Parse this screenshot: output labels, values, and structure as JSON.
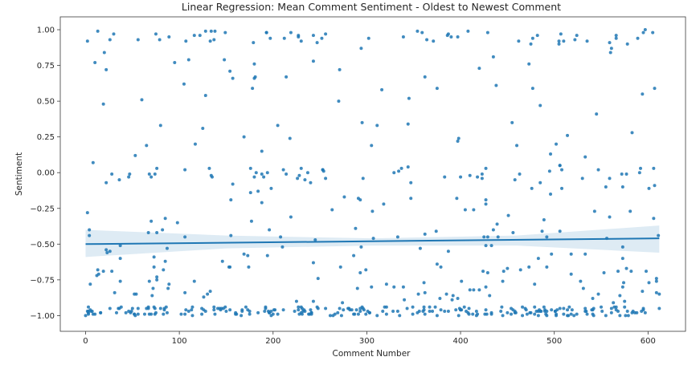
{
  "chart_data": {
    "type": "scatter",
    "title": "Linear Regression:  Mean Comment Sentiment - Oldest to Newest Comment",
    "xlabel": "Comment Number",
    "ylabel": "Sentiment",
    "xlim": [
      -27,
      640
    ],
    "ylim": [
      -1.11,
      1.09
    ],
    "x_ticks": [
      0,
      100,
      200,
      300,
      400,
      500,
      600
    ],
    "y_ticks": [
      -1.0,
      -0.75,
      -0.5,
      -0.25,
      0.0,
      0.25,
      0.5,
      0.75,
      1.0
    ],
    "x_tick_labels": [
      "0",
      "100",
      "200",
      "300",
      "400",
      "500",
      "600"
    ],
    "y_tick_labels": [
      "−1.00",
      "−0.75",
      "−0.50",
      "−0.25",
      "0.00",
      "0.25",
      "0.50",
      "0.75",
      "1.00"
    ],
    "grid": false,
    "n_points": 613,
    "regression": {
      "x_start": 0,
      "y_start": -0.5,
      "x_end": 612,
      "y_end": -0.46,
      "ci_band": [
        {
          "x": 0,
          "low": -0.59,
          "high": -0.4
        },
        {
          "x": 150,
          "low": -0.53,
          "high": -0.44
        },
        {
          "x": 306,
          "low": -0.51,
          "high": -0.46
        },
        {
          "x": 460,
          "low": -0.51,
          "high": -0.44
        },
        {
          "x": 612,
          "low": -0.56,
          "high": -0.37
        }
      ]
    },
    "points_sample": [
      {
        "x": 2,
        "y": -0.28
      },
      {
        "x": 5,
        "y": -0.78
      },
      {
        "x": 8,
        "y": 0.07
      },
      {
        "x": 10,
        "y": 0.77
      },
      {
        "x": 13,
        "y": 0.99
      },
      {
        "x": 20,
        "y": 0.84
      },
      {
        "x": 22,
        "y": 0.72
      },
      {
        "x": 30,
        "y": 0.97
      },
      {
        "x": 60,
        "y": 0.51
      },
      {
        "x": 65,
        "y": 0.19
      },
      {
        "x": 80,
        "y": 0.33
      },
      {
        "x": 105,
        "y": 0.62
      },
      {
        "x": 110,
        "y": 0.79
      },
      {
        "x": 125,
        "y": 0.31
      },
      {
        "x": 148,
        "y": 0.79
      },
      {
        "x": 205,
        "y": 0.33
      },
      {
        "x": 214,
        "y": 0.67
      },
      {
        "x": 243,
        "y": 0.78
      },
      {
        "x": 270,
        "y": 0.5
      },
      {
        "x": 305,
        "y": 0.19
      },
      {
        "x": 316,
        "y": 0.58
      },
      {
        "x": 345,
        "y": 0.52
      },
      {
        "x": 375,
        "y": 0.59
      },
      {
        "x": 398,
        "y": 0.24
      },
      {
        "x": 420,
        "y": 0.73
      },
      {
        "x": 460,
        "y": 0.19
      },
      {
        "x": 477,
        "y": 0.59
      },
      {
        "x": 545,
        "y": 0.41
      },
      {
        "x": 560,
        "y": 0.84
      },
      {
        "x": 583,
        "y": 0.28
      },
      {
        "x": 597,
        "y": 1.0
      },
      {
        "x": 607,
        "y": 0.59
      },
      {
        "x": 612,
        "y": -0.85
      }
    ]
  }
}
